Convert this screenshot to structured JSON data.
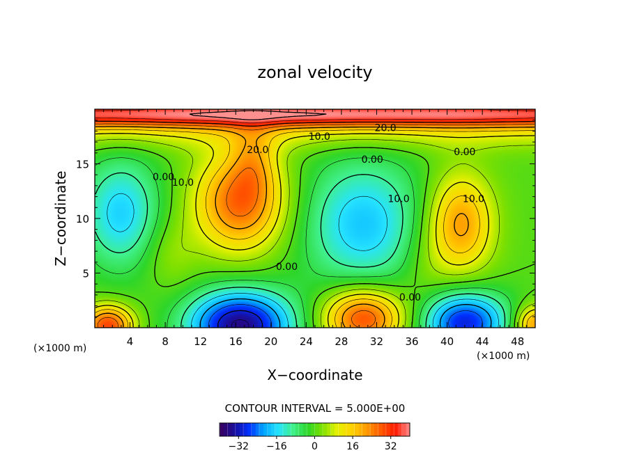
{
  "chart_data": {
    "type": "heatmap",
    "title": "zonal velocity",
    "xlabel": "X−coordinate",
    "ylabel": "Z−coordinate",
    "x_unit_label_left": "(×1000 m)",
    "x_unit_label_right": "(×1000 m)",
    "xlim": [
      0,
      50
    ],
    "ylim": [
      0,
      20
    ],
    "x_ticks": [
      4,
      8,
      12,
      16,
      20,
      24,
      28,
      32,
      36,
      40,
      44,
      48
    ],
    "x_tick_labels": [
      "4",
      "8",
      "12",
      "16",
      "20",
      "24",
      "28",
      "32",
      "36",
      "40",
      "44",
      "48"
    ],
    "y_ticks": [
      5,
      10,
      15
    ],
    "y_tick_labels": [
      "5",
      "10",
      "15"
    ],
    "contour_interval_text": "CONTOUR INTERVAL = 5.000E+00",
    "contour_interval": 5,
    "negative_contours_dashed": true,
    "colorbar": {
      "min": -40,
      "max": 40,
      "ticks": [
        -32,
        -16,
        0,
        16,
        32
      ],
      "tick_labels": [
        "−32",
        "−16",
        "0",
        "16",
        "32"
      ],
      "colormap": [
        "#3a005c",
        "#1a0f9c",
        "#0030ff",
        "#00a6ff",
        "#26e3ff",
        "#40f08a",
        "#2ed62a",
        "#7de000",
        "#e3f000",
        "#ffd400",
        "#ff9c00",
        "#ff5a00",
        "#ff1a00",
        "#ff9090"
      ]
    },
    "contour_labels": [
      {
        "text": "20.0",
        "x": 33,
        "y": 18
      },
      {
        "text": "10.0",
        "x": 25.5,
        "y": 17.2
      },
      {
        "text": "0.00",
        "x": 42,
        "y": 15.8
      },
      {
        "text": "0.00",
        "x": 31.5,
        "y": 15.1
      },
      {
        "text": "0.00",
        "x": 7.8,
        "y": 13.5
      },
      {
        "text": "10.0",
        "x": 10,
        "y": 13
      },
      {
        "text": "20.0",
        "x": 18.5,
        "y": 16
      },
      {
        "text": "10.0",
        "x": 34.5,
        "y": 11.5
      },
      {
        "text": "10.0",
        "x": 43,
        "y": 11.5
      },
      {
        "text": "0.00",
        "x": 21.8,
        "y": 5.3
      },
      {
        "text": "0.00",
        "x": 35.8,
        "y": 2.5
      }
    ],
    "features": [
      {
        "kind": "jet",
        "center": [
          24,
          19.6
        ],
        "sigma": [
          60,
          0.9
        ],
        "amplitude": 38
      },
      {
        "kind": "jet",
        "center": [
          24,
          17.8
        ],
        "sigma": [
          60,
          1.2
        ],
        "amplitude": 8
      },
      {
        "kind": "max",
        "center": [
          16.5,
          11.5
        ],
        "sigma": [
          3.6,
          3.2
        ],
        "amplitude": 27
      },
      {
        "kind": "max",
        "center": [
          18,
          15.5
        ],
        "sigma": [
          1.8,
          2.2
        ],
        "amplitude": 10
      },
      {
        "kind": "max",
        "center": [
          41.5,
          9.5
        ],
        "sigma": [
          2.6,
          3.2
        ],
        "amplitude": 22
      },
      {
        "kind": "min",
        "center": [
          3,
          10.5
        ],
        "sigma": [
          3.2,
          3.6
        ],
        "amplitude": -17
      },
      {
        "kind": "min",
        "center": [
          30.5,
          9.5
        ],
        "sigma": [
          4.8,
          4.2
        ],
        "amplitude": -18
      },
      {
        "kind": "min",
        "center": [
          16.5,
          0.2
        ],
        "sigma": [
          4.2,
          2.3
        ],
        "amplitude": -36
      },
      {
        "kind": "min",
        "center": [
          42,
          0.5
        ],
        "sigma": [
          3.4,
          2.0
        ],
        "amplitude": -30
      },
      {
        "kind": "max",
        "center": [
          30.5,
          0.9
        ],
        "sigma": [
          3.2,
          1.9
        ],
        "amplitude": 30
      },
      {
        "kind": "max",
        "center": [
          1.5,
          0.2
        ],
        "sigma": [
          2.0,
          1.3
        ],
        "amplitude": 30
      },
      {
        "kind": "max",
        "center": [
          50,
          0.3
        ],
        "sigma": [
          1.6,
          1.2
        ],
        "amplitude": 22
      },
      {
        "kind": "max",
        "center": [
          8.5,
          6.8
        ],
        "sigma": [
          2.2,
          2.4
        ],
        "amplitude": 5
      },
      {
        "kind": "max",
        "center": [
          37.5,
          5.5
        ],
        "sigma": [
          2.2,
          3.0
        ],
        "amplitude": 4
      }
    ],
    "grid": false,
    "colorbar_placement": "bottom"
  }
}
